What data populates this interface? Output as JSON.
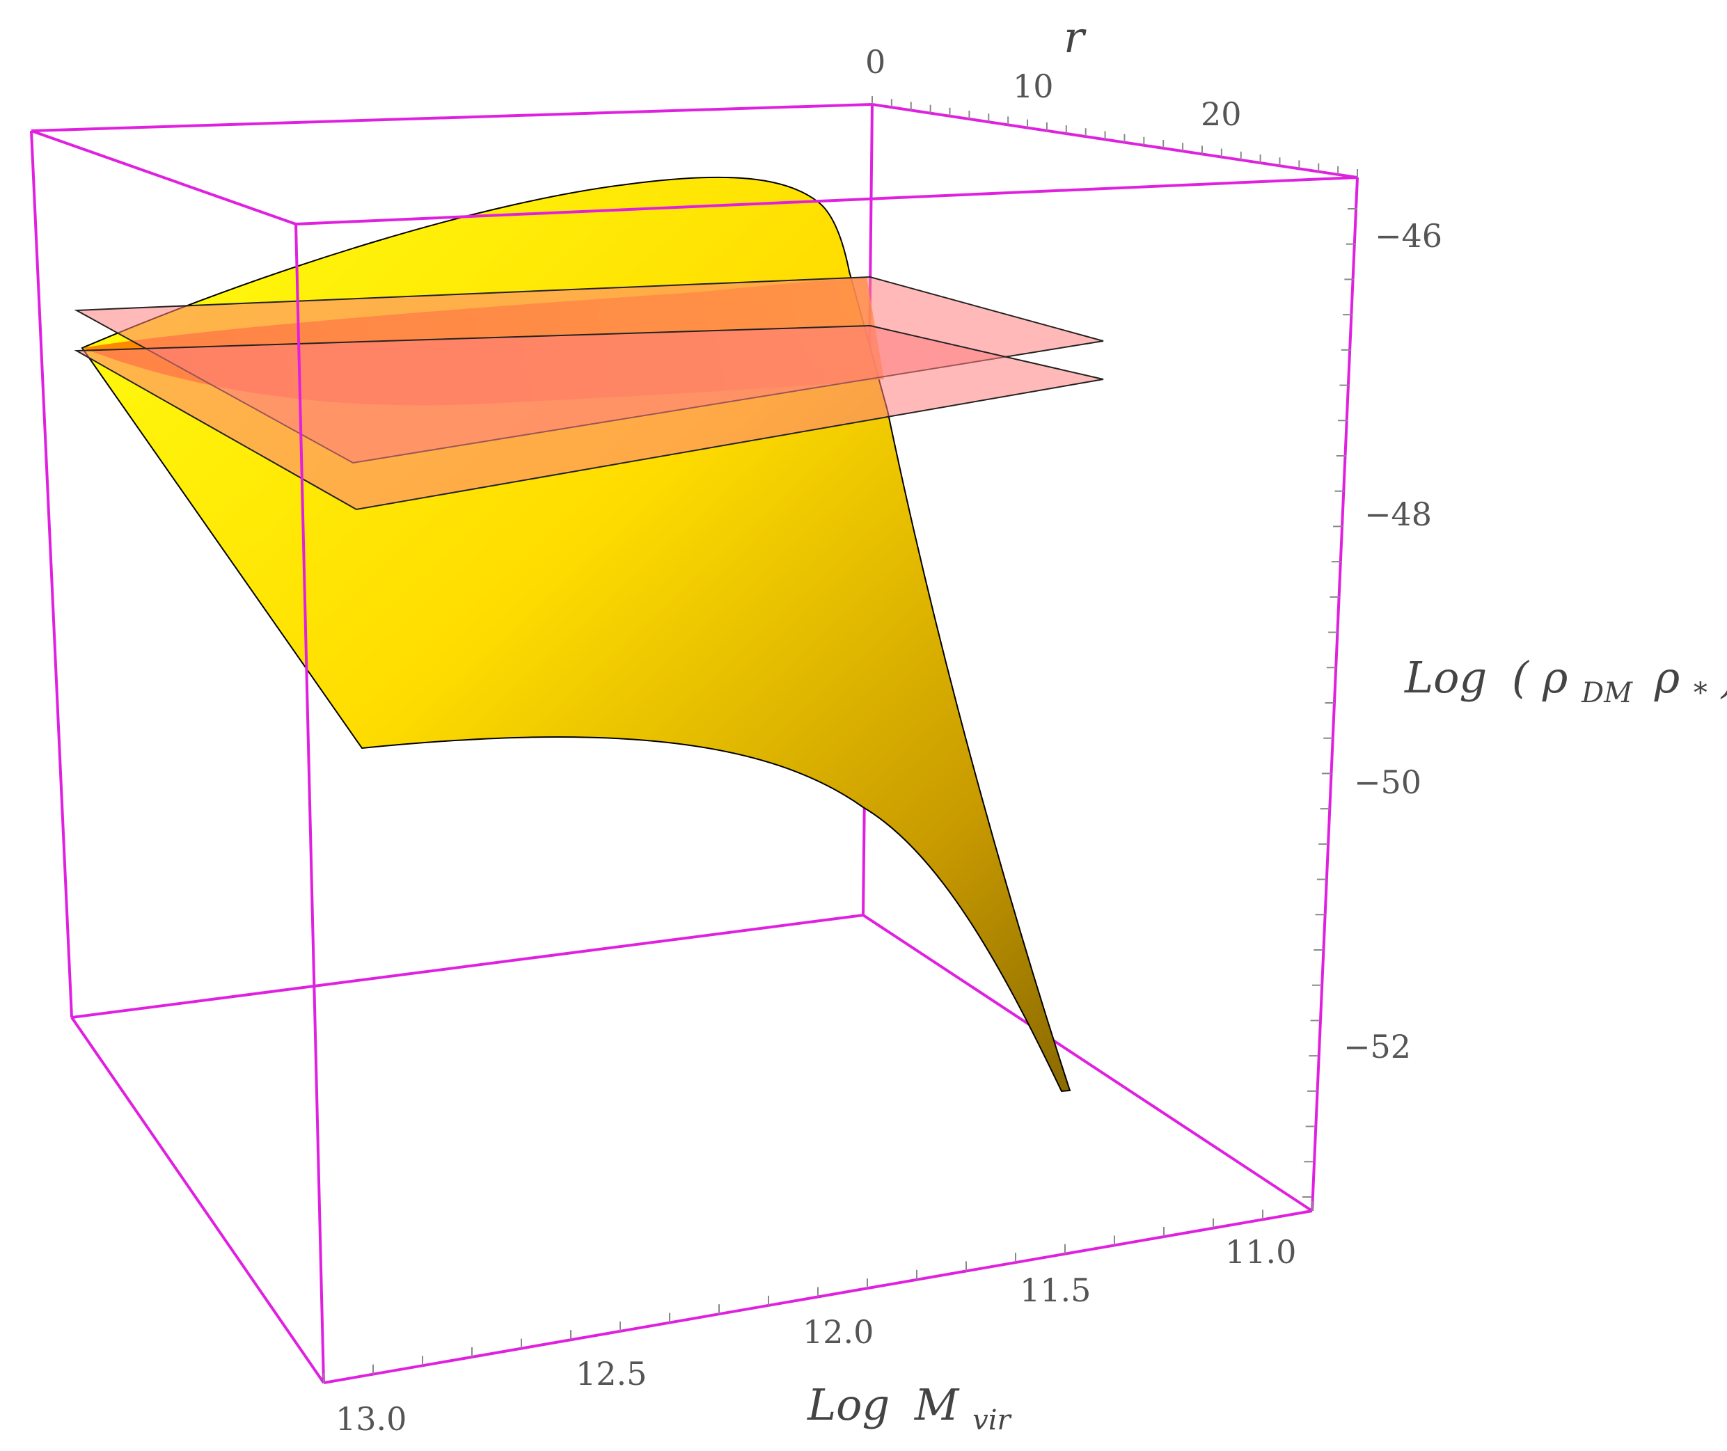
{
  "chart_data": {
    "type": "surface3d",
    "axes": {
      "x": {
        "label_main": "Log",
        "label_var": "M",
        "label_sub": "vir",
        "ticks": [
          "13.0",
          "12.5",
          "12.0",
          "11.5",
          "11.0"
        ],
        "range": [
          11.0,
          13.0
        ]
      },
      "y": {
        "label": "r",
        "ticks": [
          "0",
          "10",
          "20"
        ],
        "range": [
          0,
          25
        ]
      },
      "z": {
        "label_main": "Log",
        "label_open": "(",
        "label_rho1": "ρ",
        "label_sub1": "DM",
        "label_rho2": "ρ",
        "label_sub2": "*",
        "label_close": ")",
        "ticks": [
          "-46",
          "-48",
          "-50",
          "-52"
        ],
        "range": [
          -53.2,
          -45.2
        ]
      }
    },
    "surface": {
      "color": "#ffe600",
      "edge_curves": {
        "r_min_logM": [
          11.5,
          11.8,
          12.0,
          12.5,
          13.0
        ],
        "r_min_logZ": [
          -52.5,
          -50.6,
          -49.8,
          -49.3,
          -49.6
        ],
        "logM_min_r": [
          0,
          0.5,
          1,
          2,
          4,
          8,
          12,
          15
        ],
        "logM_min_logZ": [
          -52.5,
          -51.5,
          -50.6,
          -49.4,
          -48.3,
          -47.4,
          -46.6,
          -46.2
        ]
      }
    },
    "planes": [
      {
        "logZ": -46.8,
        "color": "#ff8080",
        "opacity": 0.55
      },
      {
        "logZ": -47.1,
        "color": "#ff8080",
        "opacity": 0.55
      }
    ],
    "box_color": "#e020e0"
  }
}
